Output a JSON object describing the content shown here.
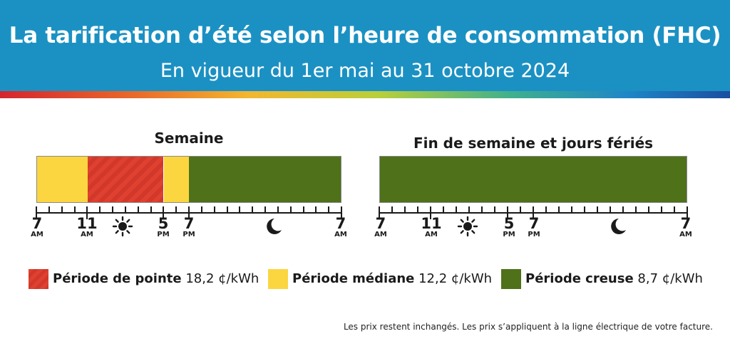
{
  "header": {
    "title": "La tarification d’été selon l’heure de consommation (FHC)",
    "subtitle": "En vigueur du 1er mai au 31 octobre 2024"
  },
  "weekday": {
    "title": "Semaine",
    "segments": [
      {
        "type": "mid",
        "from": 7,
        "to": 11
      },
      {
        "type": "peak",
        "from": 11,
        "to": 17
      },
      {
        "type": "mid",
        "from": 17,
        "to": 19
      },
      {
        "type": "off",
        "from": 19,
        "to": 31
      }
    ]
  },
  "weekend": {
    "title": "Fin de semaine et jours fériés",
    "segments": [
      {
        "type": "off",
        "from": 7,
        "to": 31
      }
    ]
  },
  "axis": {
    "labels": [
      {
        "hour": "7",
        "ampm": "AM"
      },
      {
        "hour": "11",
        "ampm": "AM"
      },
      {
        "hour": "5",
        "ampm": "PM"
      },
      {
        "hour": "7",
        "ampm": "PM"
      },
      {
        "hour": "7",
        "ampm": "AM"
      }
    ],
    "day_icon": "sun-icon",
    "night_icon": "moon-icon"
  },
  "legend": [
    {
      "name": "Période de pointe",
      "price": "18,2 ¢/kWh",
      "color": "#e0402f"
    },
    {
      "name": "Période médiane",
      "price": "12,2 ¢/kWh",
      "color": "#fcd640"
    },
    {
      "name": "Période creuse",
      "price": "8,7 ¢/kWh",
      "color": "#4f7119"
    }
  ],
  "footnote": "Les prix restent inchangés. Les prix s’appliquent à la ligne électrique de votre facture."
}
